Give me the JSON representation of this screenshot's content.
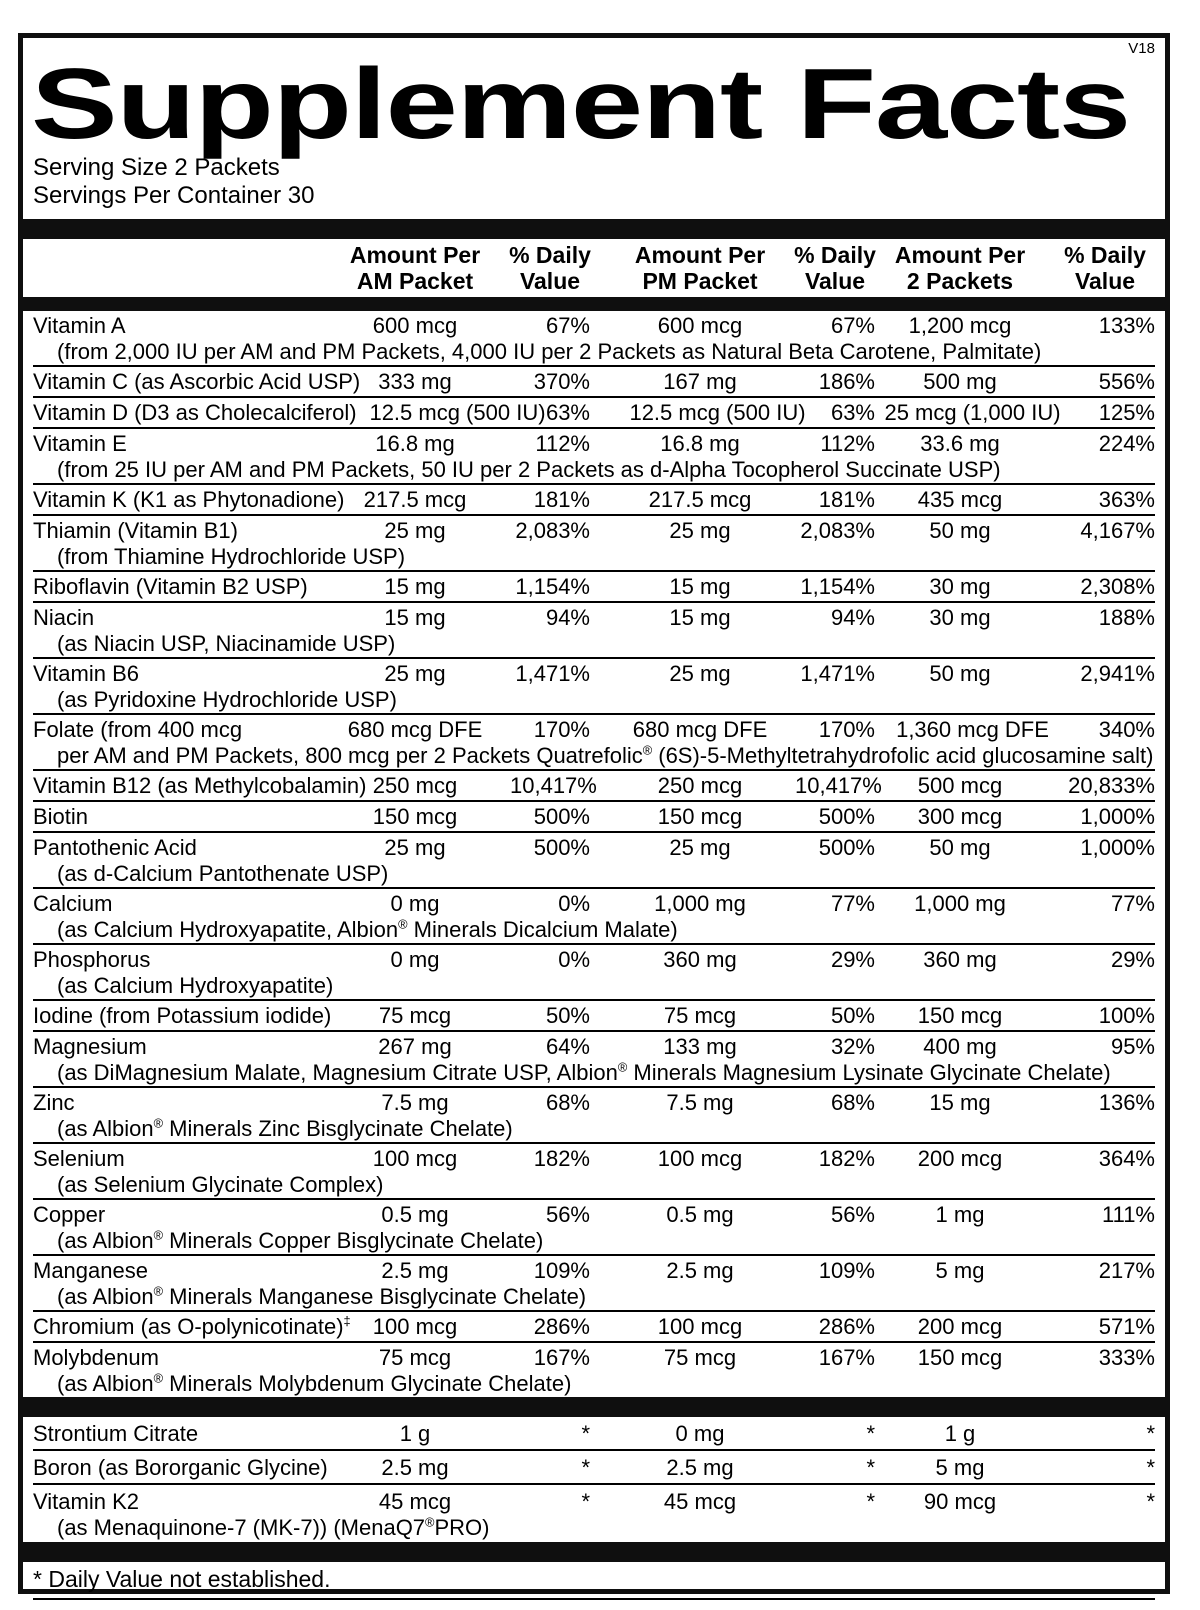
{
  "version": "V18",
  "title": "Supplement Facts",
  "serving": {
    "size": "Serving Size 2 Packets",
    "per_container": "Servings Per Container 30"
  },
  "columns": [
    {
      "line1": "Amount Per",
      "line2": "AM Packet"
    },
    {
      "line1": "% Daily",
      "line2": "Value"
    },
    {
      "line1": "Amount Per",
      "line2": "PM Packet"
    },
    {
      "line1": "% Daily",
      "line2": "Value"
    },
    {
      "line1": "Amount Per",
      "line2": "2 Packets"
    },
    {
      "line1": "% Daily",
      "line2": "Value"
    }
  ],
  "main_rows": [
    {
      "name": "Vitamin A",
      "am": "600 mcg",
      "am_dv": "67%",
      "pm": "600 mcg",
      "pm_dv": "67%",
      "total": "1,200 mcg",
      "total_dv": "133%",
      "sub": "(from 2,000 IU per AM and PM Packets, 4,000 IU per 2 Packets as Natural Beta Carotene, Palmitate)"
    },
    {
      "name": "Vitamin C (as Ascorbic Acid USP)",
      "am": "333 mg",
      "am_dv": "370%",
      "pm": "167 mg",
      "pm_dv": "186%",
      "total": "500 mg",
      "total_dv": "556%"
    },
    {
      "name": "Vitamin D (D3 as Cholecalciferol)",
      "am": "12.5 mcg (500 IU)",
      "am_dv": "63%",
      "pm": "12.5 mcg (500 IU)",
      "pm_dv": "63%",
      "total": "25 mcg (1,000 IU)",
      "total_dv": "125%"
    },
    {
      "name": "Vitamin E",
      "am": "16.8 mg",
      "am_dv": "112%",
      "pm": "16.8 mg",
      "pm_dv": "112%",
      "total": "33.6 mg",
      "total_dv": "224%",
      "sub": "(from 25 IU per AM and PM Packets, 50 IU per 2 Packets as d-Alpha Tocopherol Succinate USP)"
    },
    {
      "name": "Vitamin K (K1 as Phytonadione)",
      "am": "217.5 mcg",
      "am_dv": "181%",
      "pm": "217.5 mcg",
      "pm_dv": "181%",
      "total": "435 mcg",
      "total_dv": "363%"
    },
    {
      "name": "Thiamin (Vitamin B1)",
      "am": "25 mg",
      "am_dv": "2,083%",
      "pm": "25 mg",
      "pm_dv": "2,083%",
      "total": "50 mg",
      "total_dv": "4,167%",
      "sub": "(from Thiamine Hydrochloride USP)"
    },
    {
      "name": "Riboflavin (Vitamin B2 USP)",
      "am": "15 mg",
      "am_dv": "1,154%",
      "pm": "15 mg",
      "pm_dv": "1,154%",
      "total": "30 mg",
      "total_dv": "2,308%"
    },
    {
      "name": "Niacin",
      "am": "15 mg",
      "am_dv": "94%",
      "pm": "15 mg",
      "pm_dv": "94%",
      "total": "30 mg",
      "total_dv": "188%",
      "sub": "(as Niacin USP, Niacinamide USP)"
    },
    {
      "name": "Vitamin B6",
      "am": "25 mg",
      "am_dv": "1,471%",
      "pm": "25 mg",
      "pm_dv": "1,471%",
      "total": "50 mg",
      "total_dv": "2,941%",
      "sub": "(as Pyridoxine Hydrochloride USP)"
    },
    {
      "name": "Folate (from 400 mcg",
      "am": "680 mcg DFE",
      "am_dv": "170%",
      "pm": "680 mcg DFE",
      "pm_dv": "170%",
      "total": "1,360 mcg DFE",
      "total_dv": "340%",
      "sub": "per AM and PM Packets, 800 mcg per 2 Packets Quatrefolic® (6S)-5-Methyltetrahydrofolic acid glucosamine salt)"
    },
    {
      "name": "Vitamin B12 (as Methylcobalamin)",
      "am": "250 mcg",
      "am_dv": "10,417%",
      "pm": "250 mcg",
      "pm_dv": "10,417%",
      "total": "500 mcg",
      "total_dv": "20,833%"
    },
    {
      "name": "Biotin",
      "am": "150 mcg",
      "am_dv": "500%",
      "pm": "150 mcg",
      "pm_dv": "500%",
      "total": "300 mcg",
      "total_dv": "1,000%"
    },
    {
      "name": "Pantothenic Acid",
      "am": "25 mg",
      "am_dv": "500%",
      "pm": "25 mg",
      "pm_dv": "500%",
      "total": "50 mg",
      "total_dv": "1,000%",
      "sub": "(as d-Calcium Pantothenate USP)"
    },
    {
      "name": "Calcium",
      "am": "0 mg",
      "am_dv": "0%",
      "pm": "1,000 mg",
      "pm_dv": "77%",
      "total": "1,000 mg",
      "total_dv": "77%",
      "sub": "(as Calcium Hydroxyapatite, Albion® Minerals Dicalcium Malate)"
    },
    {
      "name": "Phosphorus",
      "am": "0 mg",
      "am_dv": "0%",
      "pm": "360 mg",
      "pm_dv": "29%",
      "total": "360 mg",
      "total_dv": "29%",
      "sub": "(as Calcium Hydroxyapatite)"
    },
    {
      "name": "Iodine (from Potassium iodide)",
      "am": "75 mcg",
      "am_dv": "50%",
      "pm": "75 mcg",
      "pm_dv": "50%",
      "total": "150 mcg",
      "total_dv": "100%"
    },
    {
      "name": "Magnesium",
      "am": "267 mg",
      "am_dv": "64%",
      "pm": "133 mg",
      "pm_dv": "32%",
      "total": "400 mg",
      "total_dv": "95%",
      "sub": "(as DiMagnesium Malate, Magnesium Citrate USP, Albion® Minerals Magnesium Lysinate Glycinate Chelate)"
    },
    {
      "name": "Zinc",
      "am": "7.5 mg",
      "am_dv": "68%",
      "pm": "7.5 mg",
      "pm_dv": "68%",
      "total": "15 mg",
      "total_dv": "136%",
      "sub": "(as Albion® Minerals Zinc Bisglycinate Chelate)"
    },
    {
      "name": "Selenium",
      "am": "100 mcg",
      "am_dv": "182%",
      "pm": "100 mcg",
      "pm_dv": "182%",
      "total": "200 mcg",
      "total_dv": "364%",
      "sub": "(as Selenium Glycinate Complex)"
    },
    {
      "name": "Copper",
      "am": "0.5 mg",
      "am_dv": "56%",
      "pm": "0.5 mg",
      "pm_dv": "56%",
      "total": "1 mg",
      "total_dv": "111%",
      "sub": "(as Albion® Minerals Copper Bisglycinate Chelate)"
    },
    {
      "name": "Manganese",
      "am": "2.5 mg",
      "am_dv": "109%",
      "pm": "2.5 mg",
      "pm_dv": "109%",
      "total": "5 mg",
      "total_dv": "217%",
      "sub": "(as Albion® Minerals Manganese Bisglycinate Chelate)"
    },
    {
      "name": "Chromium (as O-polynicotinate)‡",
      "am": "100 mcg",
      "am_dv": "286%",
      "pm": "100 mcg",
      "pm_dv": "286%",
      "total": "200 mcg",
      "total_dv": "571%"
    },
    {
      "name": "Molybdenum",
      "am": "75 mcg",
      "am_dv": "167%",
      "pm": "75 mcg",
      "pm_dv": "167%",
      "total": "150 mcg",
      "total_dv": "333%",
      "sub": "(as Albion® Minerals Molybdenum Glycinate Chelate)"
    }
  ],
  "supplemental_rows": [
    {
      "name": "Strontium Citrate",
      "am": "1 g",
      "am_dv": "*",
      "pm": "0 mg",
      "pm_dv": "*",
      "total": "1 g",
      "total_dv": "*"
    },
    {
      "name": "Boron (as Bororganic Glycine)",
      "am": "2.5 mg",
      "am_dv": "*",
      "pm": "2.5 mg",
      "pm_dv": "*",
      "total": "5 mg",
      "total_dv": "*"
    },
    {
      "name": "Vitamin K2",
      "am": "45 mcg",
      "am_dv": "*",
      "pm": "45 mcg",
      "pm_dv": "*",
      "total": "90 mcg",
      "total_dv": "*",
      "sub": "(as Menaquinone-7 (MK-7)) (MenaQ7®PRO)"
    }
  ],
  "footnote": "* Daily Value not established.",
  "colors": {
    "ink": "#000000",
    "bar": "#0f0f0f",
    "background": "#ffffff"
  }
}
